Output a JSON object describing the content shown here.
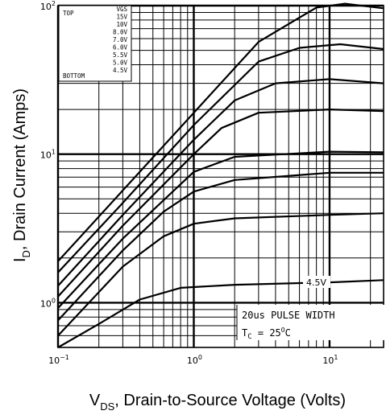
{
  "chart_data": {
    "type": "line",
    "title": "",
    "x_scale": "log",
    "y_scale": "log",
    "xlim": [
      0.1,
      25
    ],
    "ylim": [
      0.5,
      100
    ],
    "grid": true,
    "xlabel": {
      "main": "V",
      "sub": "DS",
      "rest": ", Drain-to-Source Voltage (Volts)"
    },
    "ylabel": {
      "main": "I",
      "sub": "D",
      "rest": ", Drain Current (Amps)"
    },
    "x_ticks": [
      {
        "value": 0.1,
        "base": "10",
        "exp": "−1"
      },
      {
        "value": 1,
        "base": "10",
        "exp": "0"
      },
      {
        "value": 10,
        "base": "10",
        "exp": "1"
      }
    ],
    "y_ticks": [
      {
        "value": 1,
        "base": "10",
        "exp": "0"
      },
      {
        "value": 10,
        "base": "10",
        "exp": "1"
      },
      {
        "value": 100,
        "base": "10",
        "exp": "2"
      }
    ],
    "legend": {
      "placement": "top-left",
      "header": "VGS",
      "top_label": "TOP",
      "bottom_label": "BOTTOM",
      "entries": [
        "15V",
        "10V",
        "8.0V",
        "7.0V",
        "6.0V",
        "5.5V",
        "5.0V",
        "4.5V"
      ]
    },
    "annotations": {
      "curve_label": "4.5V",
      "pulse": "20us PULSE WIDTH",
      "temp_main": "T",
      "temp_sub": "C",
      "temp_rest": " = 25",
      "temp_sup": "O",
      "temp_unit": "C"
    },
    "series": [
      {
        "vgs": "15V",
        "x": [
          0.1,
          0.3,
          1,
          3,
          8,
          13,
          25
        ],
        "y": [
          1.9,
          5.7,
          19,
          57,
          97,
          103,
          96
        ]
      },
      {
        "vgs": "10V",
        "x": [
          0.1,
          0.3,
          1,
          3,
          6,
          12,
          25
        ],
        "y": [
          1.6,
          4.7,
          15.7,
          42,
          52,
          55,
          51
        ]
      },
      {
        "vgs": "8.0V",
        "x": [
          0.1,
          0.3,
          1,
          2,
          4,
          10,
          25
        ],
        "y": [
          1.3,
          3.9,
          12.5,
          23,
          30,
          32,
          30
        ]
      },
      {
        "vgs": "7.0V",
        "x": [
          0.1,
          0.3,
          1,
          1.6,
          3,
          10,
          25
        ],
        "y": [
          1.1,
          3.3,
          10,
          15,
          19,
          20,
          19.5
        ]
      },
      {
        "vgs": "6.0V",
        "x": [
          0.1,
          0.3,
          0.7,
          1,
          2,
          10,
          25
        ],
        "y": [
          0.92,
          2.7,
          5.6,
          7.6,
          9.6,
          10.4,
          10.3
        ]
      },
      {
        "vgs": "5.5V",
        "x": [
          0.1,
          0.3,
          0.6,
          1,
          2,
          10,
          25
        ],
        "y": [
          0.76,
          2.25,
          4.1,
          5.6,
          6.7,
          7.5,
          7.5
        ]
      },
      {
        "vgs": "5.0V",
        "x": [
          0.1,
          0.3,
          0.6,
          1,
          2,
          10,
          25
        ],
        "y": [
          0.6,
          1.75,
          2.8,
          3.4,
          3.7,
          3.9,
          4.0
        ]
      },
      {
        "vgs": "4.5V",
        "x": [
          0.1,
          0.2,
          0.4,
          0.8,
          2,
          10,
          25
        ],
        "y": [
          0.5,
          0.72,
          1.05,
          1.26,
          1.32,
          1.37,
          1.42
        ]
      }
    ]
  }
}
